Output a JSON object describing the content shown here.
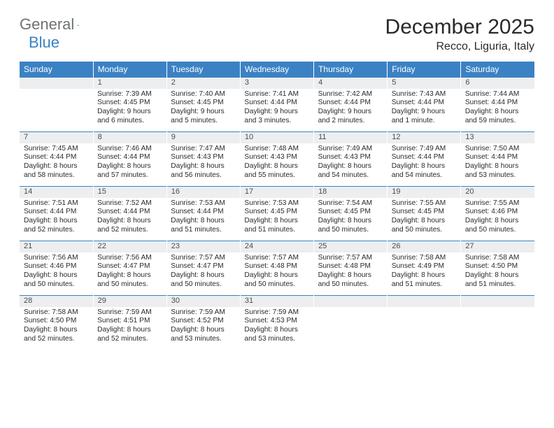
{
  "logo": {
    "text1": "General",
    "text2": "Blue"
  },
  "title": "December 2025",
  "location": "Recco, Liguria, Italy",
  "colors": {
    "header_bg": "#3b82c4",
    "header_text": "#ffffff",
    "daynum_bg": "#eceeef",
    "daynum_text": "#4b4e50",
    "border": "#3b82c4",
    "body_text": "#2a2a2a",
    "logo_gray": "#6f7274",
    "logo_blue": "#3b82c4"
  },
  "weekdays": [
    "Sunday",
    "Monday",
    "Tuesday",
    "Wednesday",
    "Thursday",
    "Friday",
    "Saturday"
  ],
  "weeks": [
    {
      "nums": [
        "",
        "1",
        "2",
        "3",
        "4",
        "5",
        "6"
      ],
      "cells": [
        {
          "sunrise": "",
          "sunset": "",
          "daylight": ""
        },
        {
          "sunrise": "Sunrise: 7:39 AM",
          "sunset": "Sunset: 4:45 PM",
          "daylight": "Daylight: 9 hours and 6 minutes."
        },
        {
          "sunrise": "Sunrise: 7:40 AM",
          "sunset": "Sunset: 4:45 PM",
          "daylight": "Daylight: 9 hours and 5 minutes."
        },
        {
          "sunrise": "Sunrise: 7:41 AM",
          "sunset": "Sunset: 4:44 PM",
          "daylight": "Daylight: 9 hours and 3 minutes."
        },
        {
          "sunrise": "Sunrise: 7:42 AM",
          "sunset": "Sunset: 4:44 PM",
          "daylight": "Daylight: 9 hours and 2 minutes."
        },
        {
          "sunrise": "Sunrise: 7:43 AM",
          "sunset": "Sunset: 4:44 PM",
          "daylight": "Daylight: 9 hours and 1 minute."
        },
        {
          "sunrise": "Sunrise: 7:44 AM",
          "sunset": "Sunset: 4:44 PM",
          "daylight": "Daylight: 8 hours and 59 minutes."
        }
      ]
    },
    {
      "nums": [
        "7",
        "8",
        "9",
        "10",
        "11",
        "12",
        "13"
      ],
      "cells": [
        {
          "sunrise": "Sunrise: 7:45 AM",
          "sunset": "Sunset: 4:44 PM",
          "daylight": "Daylight: 8 hours and 58 minutes."
        },
        {
          "sunrise": "Sunrise: 7:46 AM",
          "sunset": "Sunset: 4:44 PM",
          "daylight": "Daylight: 8 hours and 57 minutes."
        },
        {
          "sunrise": "Sunrise: 7:47 AM",
          "sunset": "Sunset: 4:43 PM",
          "daylight": "Daylight: 8 hours and 56 minutes."
        },
        {
          "sunrise": "Sunrise: 7:48 AM",
          "sunset": "Sunset: 4:43 PM",
          "daylight": "Daylight: 8 hours and 55 minutes."
        },
        {
          "sunrise": "Sunrise: 7:49 AM",
          "sunset": "Sunset: 4:43 PM",
          "daylight": "Daylight: 8 hours and 54 minutes."
        },
        {
          "sunrise": "Sunrise: 7:49 AM",
          "sunset": "Sunset: 4:44 PM",
          "daylight": "Daylight: 8 hours and 54 minutes."
        },
        {
          "sunrise": "Sunrise: 7:50 AM",
          "sunset": "Sunset: 4:44 PM",
          "daylight": "Daylight: 8 hours and 53 minutes."
        }
      ]
    },
    {
      "nums": [
        "14",
        "15",
        "16",
        "17",
        "18",
        "19",
        "20"
      ],
      "cells": [
        {
          "sunrise": "Sunrise: 7:51 AM",
          "sunset": "Sunset: 4:44 PM",
          "daylight": "Daylight: 8 hours and 52 minutes."
        },
        {
          "sunrise": "Sunrise: 7:52 AM",
          "sunset": "Sunset: 4:44 PM",
          "daylight": "Daylight: 8 hours and 52 minutes."
        },
        {
          "sunrise": "Sunrise: 7:53 AM",
          "sunset": "Sunset: 4:44 PM",
          "daylight": "Daylight: 8 hours and 51 minutes."
        },
        {
          "sunrise": "Sunrise: 7:53 AM",
          "sunset": "Sunset: 4:45 PM",
          "daylight": "Daylight: 8 hours and 51 minutes."
        },
        {
          "sunrise": "Sunrise: 7:54 AM",
          "sunset": "Sunset: 4:45 PM",
          "daylight": "Daylight: 8 hours and 50 minutes."
        },
        {
          "sunrise": "Sunrise: 7:55 AM",
          "sunset": "Sunset: 4:45 PM",
          "daylight": "Daylight: 8 hours and 50 minutes."
        },
        {
          "sunrise": "Sunrise: 7:55 AM",
          "sunset": "Sunset: 4:46 PM",
          "daylight": "Daylight: 8 hours and 50 minutes."
        }
      ]
    },
    {
      "nums": [
        "21",
        "22",
        "23",
        "24",
        "25",
        "26",
        "27"
      ],
      "cells": [
        {
          "sunrise": "Sunrise: 7:56 AM",
          "sunset": "Sunset: 4:46 PM",
          "daylight": "Daylight: 8 hours and 50 minutes."
        },
        {
          "sunrise": "Sunrise: 7:56 AM",
          "sunset": "Sunset: 4:47 PM",
          "daylight": "Daylight: 8 hours and 50 minutes."
        },
        {
          "sunrise": "Sunrise: 7:57 AM",
          "sunset": "Sunset: 4:47 PM",
          "daylight": "Daylight: 8 hours and 50 minutes."
        },
        {
          "sunrise": "Sunrise: 7:57 AM",
          "sunset": "Sunset: 4:48 PM",
          "daylight": "Daylight: 8 hours and 50 minutes."
        },
        {
          "sunrise": "Sunrise: 7:57 AM",
          "sunset": "Sunset: 4:48 PM",
          "daylight": "Daylight: 8 hours and 50 minutes."
        },
        {
          "sunrise": "Sunrise: 7:58 AM",
          "sunset": "Sunset: 4:49 PM",
          "daylight": "Daylight: 8 hours and 51 minutes."
        },
        {
          "sunrise": "Sunrise: 7:58 AM",
          "sunset": "Sunset: 4:50 PM",
          "daylight": "Daylight: 8 hours and 51 minutes."
        }
      ]
    },
    {
      "nums": [
        "28",
        "29",
        "30",
        "31",
        "",
        "",
        ""
      ],
      "cells": [
        {
          "sunrise": "Sunrise: 7:58 AM",
          "sunset": "Sunset: 4:50 PM",
          "daylight": "Daylight: 8 hours and 52 minutes."
        },
        {
          "sunrise": "Sunrise: 7:59 AM",
          "sunset": "Sunset: 4:51 PM",
          "daylight": "Daylight: 8 hours and 52 minutes."
        },
        {
          "sunrise": "Sunrise: 7:59 AM",
          "sunset": "Sunset: 4:52 PM",
          "daylight": "Daylight: 8 hours and 53 minutes."
        },
        {
          "sunrise": "Sunrise: 7:59 AM",
          "sunset": "Sunset: 4:53 PM",
          "daylight": "Daylight: 8 hours and 53 minutes."
        },
        {
          "sunrise": "",
          "sunset": "",
          "daylight": ""
        },
        {
          "sunrise": "",
          "sunset": "",
          "daylight": ""
        },
        {
          "sunrise": "",
          "sunset": "",
          "daylight": ""
        }
      ]
    }
  ]
}
